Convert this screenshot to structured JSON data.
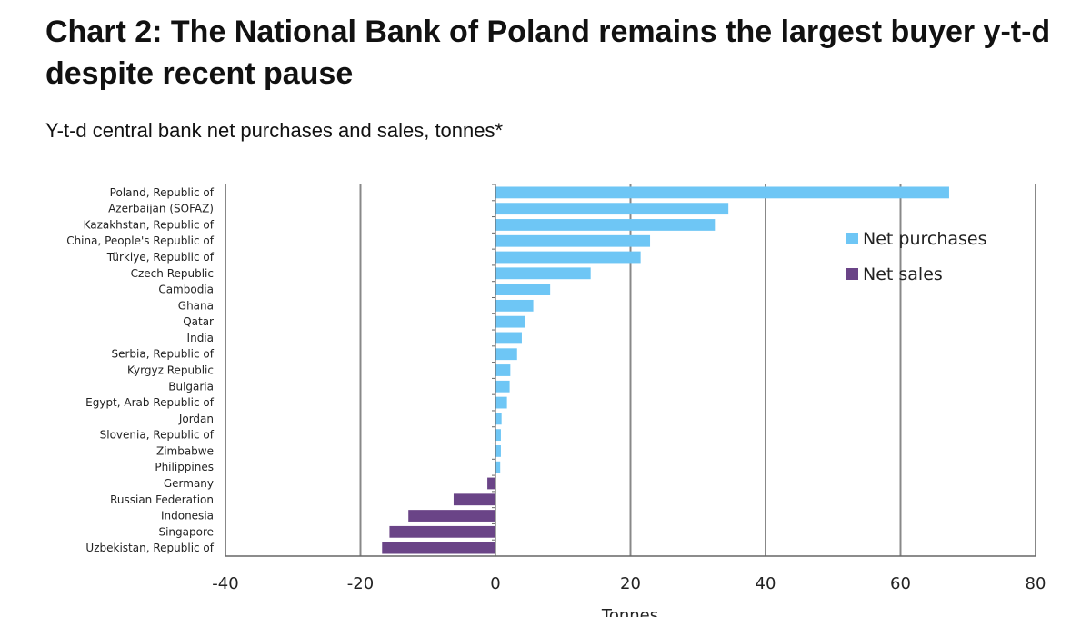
{
  "header": {
    "title": "Chart 2: The National Bank of Poland remains the largest buyer y-t-d despite recent pause",
    "subtitle": "Y-t-d central bank net purchases and sales, tonnes*"
  },
  "chart_data": {
    "type": "bar",
    "orientation": "horizontal",
    "categories": [
      "Poland, Republic of",
      "Azerbaijan (SOFAZ)",
      "Kazakhstan, Republic of",
      "China, People's Republic of",
      "Türkiye, Republic of",
      "Czech Republic",
      "Cambodia",
      "Ghana",
      "Qatar",
      "India",
      "Serbia, Republic of",
      "Kyrgyz Republic",
      "Bulgaria",
      "Egypt, Arab Republic of",
      "Jordan",
      "Slovenia, Republic of",
      "Zimbabwe",
      "Philippines",
      "Germany",
      "Russian Federation",
      "Indonesia",
      "Singapore",
      "Uzbekistan, Republic of"
    ],
    "values": [
      67.2,
      34.5,
      32.5,
      22.9,
      21.5,
      14.1,
      8.1,
      5.6,
      4.4,
      3.9,
      3.2,
      2.2,
      2.1,
      1.7,
      0.9,
      0.8,
      0.8,
      0.7,
      -1.2,
      -6.2,
      -12.9,
      -15.7,
      -16.8
    ],
    "series": [
      {
        "name": "Net purchases",
        "color": "#6EC6F5"
      },
      {
        "name": "Net sales",
        "color": "#6A4487"
      }
    ],
    "xlabel": "Tonnes",
    "xlim": [
      -40,
      80
    ],
    "xticks": [
      "-40",
      "-20",
      "0",
      "20",
      "40",
      "60",
      "80"
    ],
    "grid": true,
    "legend_position": "top-right",
    "colors": {
      "gridline": "#888888",
      "axis": "#666666"
    }
  }
}
